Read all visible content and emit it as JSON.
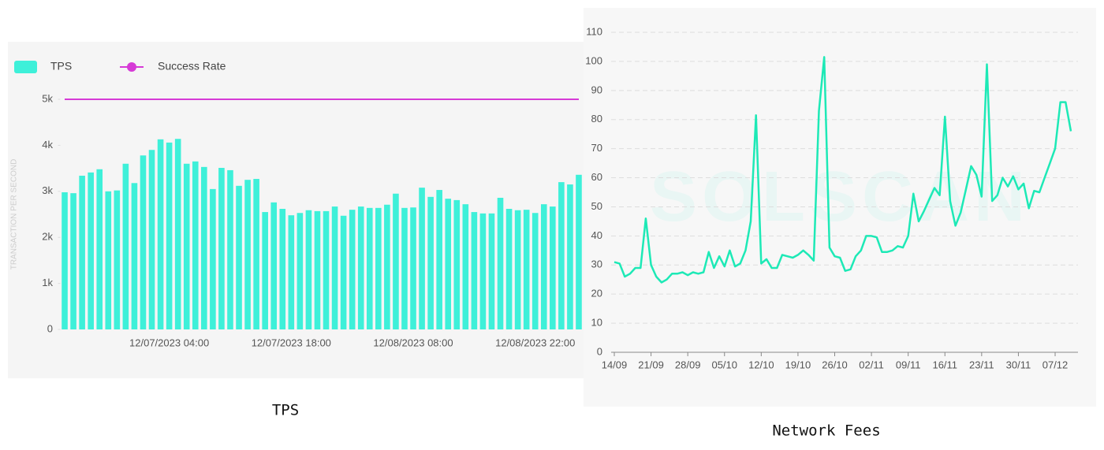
{
  "chart_data": [
    {
      "type": "bar",
      "caption": "TPS",
      "y_label": "TRANSACTION PER SECOND",
      "legend": "top-left",
      "categories": [
        null,
        null,
        null,
        null,
        null,
        null,
        null,
        null,
        null,
        null,
        null,
        null,
        "12/07/2023 04:00",
        null,
        null,
        null,
        null,
        null,
        null,
        null,
        null,
        null,
        null,
        null,
        null,
        null,
        "12/07/2023 18:00",
        null,
        null,
        null,
        null,
        null,
        null,
        null,
        null,
        null,
        null,
        null,
        null,
        null,
        "12/08/2023 08:00",
        null,
        null,
        null,
        null,
        null,
        null,
        null,
        null,
        null,
        null,
        null,
        null,
        null,
        "12/08/2023 22:00",
        null,
        null,
        null,
        null,
        null
      ],
      "series": [
        {
          "name": "TPS",
          "color": "#3ef0d9",
          "type": "bar",
          "values": [
            2980,
            2960,
            3340,
            3410,
            3480,
            3000,
            3020,
            3600,
            3180,
            3780,
            3900,
            4130,
            4060,
            4140,
            3600,
            3650,
            3530,
            3050,
            3510,
            3460,
            3120,
            3250,
            3270,
            2550,
            2760,
            2620,
            2480,
            2530,
            2590,
            2570,
            2570,
            2670,
            2470,
            2600,
            2670,
            2640,
            2640,
            2710,
            2950,
            2640,
            2650,
            3080,
            2880,
            3030,
            2840,
            2810,
            2720,
            2550,
            2520,
            2520,
            2860,
            2620,
            2590,
            2600,
            2530,
            2720,
            2670,
            3200,
            3150,
            3360
          ]
        },
        {
          "name": "Success Rate",
          "color": "#d63ad6",
          "type": "line",
          "values": [
            5000,
            5000,
            5000,
            5000,
            5000,
            5000,
            5000,
            5000,
            5000,
            5000,
            5000,
            5000,
            5000,
            5000,
            5000,
            5000,
            5000,
            5000,
            5000,
            5000,
            5000,
            5000,
            5000,
            5000,
            5000,
            5000,
            5000,
            5000,
            5000,
            5000,
            5000,
            5000,
            5000,
            5000,
            5000,
            5000,
            5000,
            5000,
            5000,
            5000,
            5000,
            5000,
            5000,
            5000,
            5000,
            5000,
            5000,
            5000,
            5000,
            5000,
            5000,
            5000,
            5000,
            5000,
            5000,
            5000,
            5000,
            5000,
            5000,
            5000
          ]
        }
      ],
      "ylim": [
        0,
        5000
      ],
      "yticks": [
        0,
        {
          "value": 1000,
          "label": "1k"
        },
        {
          "value": 2000,
          "label": "2k"
        },
        {
          "value": 3000,
          "label": "3k"
        },
        {
          "value": 4000,
          "label": "4k"
        },
        {
          "value": 5000,
          "label": "5k"
        }
      ],
      "grid": false
    },
    {
      "type": "line",
      "caption": "Network Fees",
      "watermark": "SOLSCAN",
      "color": "#1de9b6",
      "categories": [
        "14/09",
        null,
        null,
        null,
        null,
        null,
        null,
        "21/09",
        null,
        null,
        null,
        null,
        null,
        null,
        "28/09",
        null,
        null,
        null,
        null,
        null,
        null,
        "05/10",
        null,
        null,
        null,
        null,
        null,
        null,
        "12/10",
        null,
        null,
        null,
        null,
        null,
        null,
        "19/10",
        null,
        null,
        null,
        null,
        null,
        null,
        "26/10",
        null,
        null,
        null,
        null,
        null,
        null,
        "02/11",
        null,
        null,
        null,
        null,
        null,
        null,
        "09/11",
        null,
        null,
        null,
        null,
        null,
        null,
        "16/11",
        null,
        null,
        null,
        null,
        null,
        null,
        "23/11",
        null,
        null,
        null,
        null,
        null,
        null,
        "30/11",
        null,
        null,
        null,
        null,
        null,
        null,
        "07/12",
        null,
        null,
        null
      ],
      "values": [
        31,
        30.5,
        26,
        27,
        29,
        29,
        46,
        30,
        26,
        24,
        25,
        27,
        27,
        27.5,
        26.5,
        27.5,
        27,
        27.5,
        34.5,
        29,
        33,
        29.5,
        35,
        29.5,
        30.5,
        35,
        45,
        81.5,
        30.5,
        32,
        29,
        29,
        33.5,
        33,
        32.5,
        33.5,
        35,
        33.5,
        31.5,
        83,
        101.5,
        36,
        33,
        32.5,
        28,
        28.5,
        33,
        35,
        40,
        40,
        39.5,
        34.5,
        34.5,
        35,
        36.5,
        36,
        40,
        54.5,
        45,
        48.5,
        52.5,
        56.5,
        54,
        81,
        52,
        43.5,
        48,
        56,
        64,
        61,
        53.5,
        99,
        52,
        54,
        60,
        57,
        60.5,
        56,
        58,
        49.5,
        55.5,
        55,
        60,
        65,
        70,
        86,
        86,
        76
      ],
      "ylim": [
        0,
        110
      ],
      "yticks": [
        0,
        10,
        20,
        30,
        40,
        50,
        60,
        70,
        80,
        90,
        100,
        110
      ],
      "grid": true
    }
  ]
}
